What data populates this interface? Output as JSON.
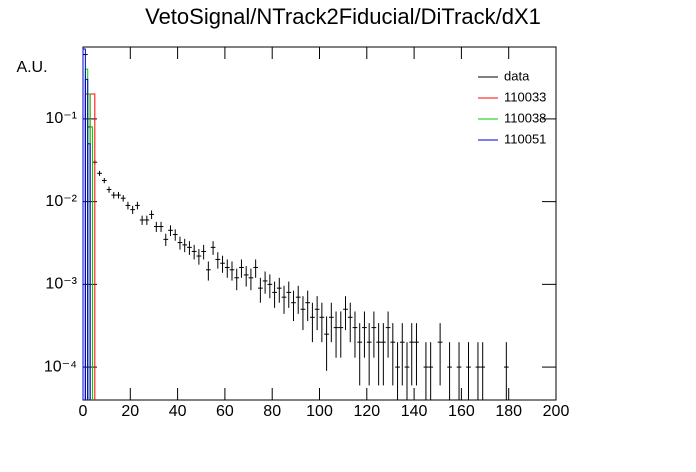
{
  "chart_data": {
    "type": "scatter",
    "title": "VetoSignal/NTrack2Fiducial/DiTrack/dX1",
    "y_label": "A.U.",
    "log_y": true,
    "xlim": [
      0,
      200
    ],
    "xticks": [
      0,
      20,
      40,
      60,
      80,
      100,
      120,
      140,
      160,
      180,
      200
    ],
    "ylim": [
      4e-05,
      0.74
    ],
    "yticks": [
      {
        "value": 0.0001,
        "label": "10⁻⁴"
      },
      {
        "value": 0.001,
        "label": "10⁻³"
      },
      {
        "value": 0.01,
        "label": "10⁻²"
      },
      {
        "value": 0.1,
        "label": "10⁻¹"
      }
    ],
    "legend": "top-right",
    "series": [
      {
        "name": "data",
        "color": "#000000",
        "x": [
          1,
          3,
          5,
          7,
          9,
          11,
          13,
          15,
          17,
          19,
          21,
          23,
          25,
          27,
          29,
          31,
          33,
          35,
          37,
          39,
          41,
          43,
          45,
          47,
          49,
          51,
          53,
          55,
          57,
          59,
          61,
          63,
          65,
          67,
          69,
          71,
          73,
          75,
          77,
          79,
          81,
          83,
          85,
          87,
          89,
          91,
          93,
          95,
          97,
          99,
          101,
          103,
          105,
          107,
          109,
          111,
          113,
          115,
          117,
          119,
          121,
          123,
          125,
          127,
          129,
          131,
          133,
          135,
          137,
          139,
          141,
          145,
          147,
          151,
          155,
          159,
          163,
          167,
          169,
          179
        ],
        "values": [
          0.6,
          0.08,
          0.03,
          0.022,
          0.018,
          0.014,
          0.012,
          0.012,
          0.011,
          0.009,
          0.008,
          0.009,
          0.006,
          0.006,
          0.007,
          0.005,
          0.005,
          0.0035,
          0.0045,
          0.004,
          0.0032,
          0.003,
          0.0028,
          0.0025,
          0.0022,
          0.0025,
          0.0015,
          0.0028,
          0.002,
          0.0018,
          0.0016,
          0.0015,
          0.0012,
          0.0016,
          0.0013,
          0.0012,
          0.0016,
          0.0009,
          0.0011,
          0.001,
          0.0008,
          0.0009,
          0.0007,
          0.0008,
          0.0006,
          0.0007,
          0.0005,
          0.0006,
          0.0004,
          0.0005,
          0.0004,
          0.00025,
          0.0004,
          0.0003,
          0.0003,
          0.0005,
          0.0004,
          0.0003,
          0.0002,
          0.0003,
          0.0002,
          0.0003,
          0.0002,
          0.0002,
          0.0003,
          0.0002,
          0.0001,
          0.0002,
          0.0001,
          0.0002,
          0.0002,
          0.0001,
          0.0001,
          0.0002,
          0.0001,
          0.0001,
          0.0001,
          0.0001,
          0.0001,
          0.0001
        ],
        "errors": [
          0.0077,
          0.0028,
          0.0017,
          0.0015,
          0.0013,
          0.0012,
          0.0011,
          0.0011,
          0.001,
          0.00095,
          0.0009,
          0.00095,
          0.00077,
          0.00077,
          0.00084,
          0.0007,
          0.0007,
          0.00059,
          0.00067,
          0.00063,
          0.00057,
          0.00055,
          0.00053,
          0.0005,
          0.00047,
          0.0005,
          0.00039,
          0.00053,
          0.00045,
          0.00042,
          0.0004,
          0.00039,
          0.00035,
          0.0004,
          0.00036,
          0.00035,
          0.0004,
          0.0003,
          0.00033,
          0.00032,
          0.00028,
          0.0003,
          0.00026,
          0.00028,
          0.00024,
          0.00026,
          0.00022,
          0.00024,
          0.0002,
          0.00022,
          0.0002,
          0.00016,
          0.0002,
          0.00017,
          0.00017,
          0.00022,
          0.0002,
          0.00017,
          0.00014,
          0.00017,
          0.00014,
          0.00017,
          0.00014,
          0.00014,
          0.00017,
          0.00014,
          0.0001,
          0.00014,
          0.0001,
          0.00014,
          0.00014,
          0.0001,
          0.0001,
          0.00014,
          0.0001,
          0.0001,
          0.0001,
          0.0001,
          0.0001,
          0.0001
        ],
        "bin_width": 2
      },
      {
        "name": "110033",
        "color": "#ff0000",
        "bins": [
          1,
          3,
          5
        ],
        "values": [
          0.2,
          0.2
        ]
      },
      {
        "name": "110038",
        "color": "#00cc00",
        "bins": [
          1,
          2,
          3,
          4
        ],
        "values": [
          0.4,
          0.2,
          0.08
        ]
      },
      {
        "name": "110051",
        "color": "#0000cc",
        "bins": [
          0,
          1,
          2,
          3
        ],
        "values": [
          0.7,
          0.3,
          0.05
        ]
      }
    ]
  }
}
